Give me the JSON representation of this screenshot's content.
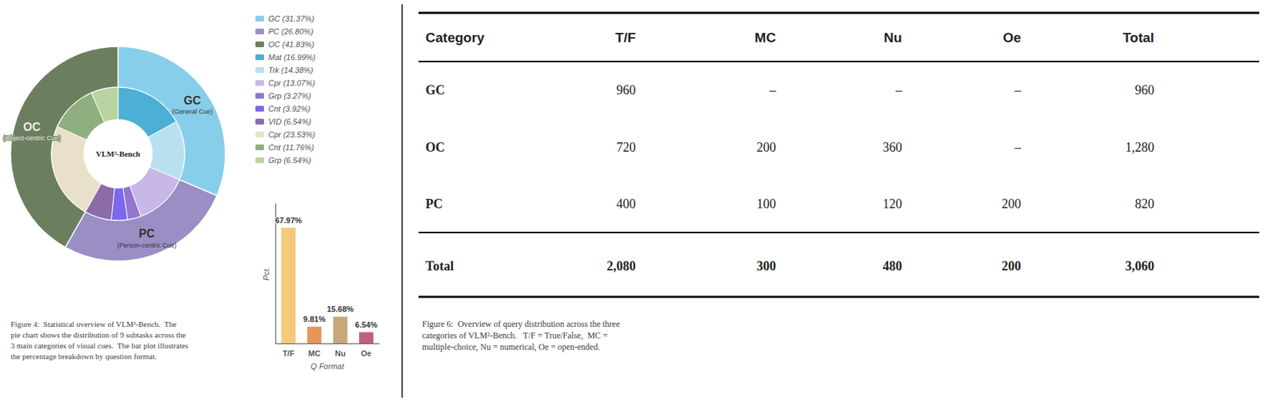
{
  "chart_data": [
    {
      "type": "pie",
      "title": "Figure 4:  Statistical overview of VLM²-Bench.  The\npie chart shows the distribution of 9 subtasks across the\n3 main categories of visual cues.  The bar plot illustrates\nthe percentage breakdown by question format.",
      "annotations": [
        "VLM²-Bench",
        "GC",
        "(General Cue)",
        "PC",
        "(Person-centric Cue)",
        "OC",
        "(Object-centric Cue)"
      ],
      "legend": "right",
      "series": [
        {
          "categories": [
            "GC (31.37%)",
            "PC (26.80%)",
            "OC (41.83%)"
          ],
          "values": [
            31.37,
            26.8,
            41.83
          ],
          "colors": [
            "#87CEEB",
            "#9B8EC4",
            "#6B7F5E"
          ]
        },
        {
          "categories": [
            "Mat (16.99%)",
            "Trk (14.38%)",
            "Cpr (13.07%)",
            "Grp (3.27%)",
            "Cnt (3.92%)",
            "VID (6.54%)",
            "Cpr (23.53%)",
            "Cnt (11.76%)",
            "Grp (6.54%)"
          ],
          "values": [
            16.99,
            14.38,
            13.07,
            3.27,
            3.92,
            6.54,
            23.53,
            11.76,
            6.54
          ],
          "colors": [
            "#4BAFD6",
            "#B8E0F0",
            "#C8B8E8",
            "#9575CD",
            "#7B68EE",
            "#8B6BA8",
            "#E8E0C8",
            "#8FAF80",
            "#B8D4A0"
          ]
        }
      ]
    },
    {
      "type": "bar",
      "categories": [
        "T/F",
        "MC",
        "Nu",
        "Oe"
      ],
      "values": [
        67.97,
        9.81,
        15.68,
        6.54
      ],
      "value_labels": [
        "67.97%",
        "9.81%",
        "15.68%",
        "6.54%"
      ],
      "colors": [
        "#F5C97A",
        "#E8955A",
        "#C8A87A",
        "#C06080"
      ],
      "xlabel": "Q Format",
      "ylabel": "Pct.",
      "ylim": [
        0,
        82
      ],
      "tick_labels": "x",
      "data_labels": true,
      "grid": false
    },
    {
      "type": "table",
      "title": "Figure 6:  Overview of query distribution across the three\ncategories of VLM²-Bench.   T/F = True/False,  MC =\nmultiple-choice, Nu = numerical, Oe = open-ended.",
      "columns": [
        "Category",
        "T/F",
        "MC",
        "Nu",
        "Oe",
        "Total"
      ],
      "rows": [
        [
          "GC",
          "960",
          "–",
          "–",
          "–",
          "960"
        ],
        [
          "OC",
          "720",
          "200",
          "360",
          "–",
          "1,280"
        ],
        [
          "PC",
          "400",
          "100",
          "120",
          "200",
          "820"
        ],
        [
          "Total",
          "2,080",
          "300",
          "480",
          "200",
          "3,060"
        ]
      ]
    }
  ]
}
